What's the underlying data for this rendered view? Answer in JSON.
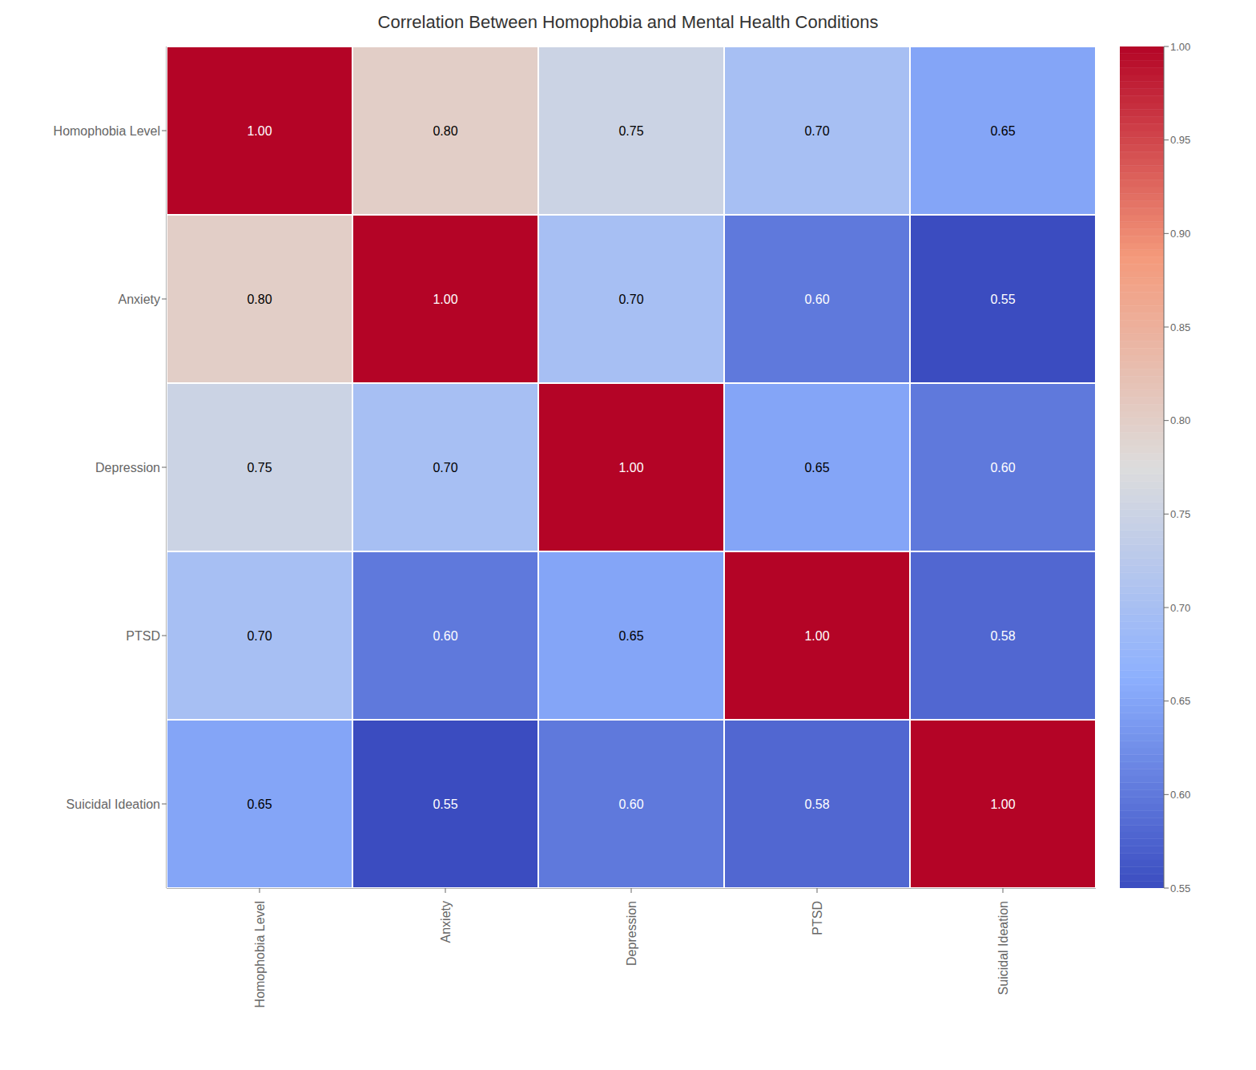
{
  "chart_data": {
    "type": "heatmap",
    "title": "Correlation Between Homophobia and Mental Health Conditions",
    "categories": [
      "Homophobia Level",
      "Anxiety",
      "Depression",
      "PTSD",
      "Suicidal Ideation"
    ],
    "values": [
      [
        1.0,
        0.8,
        0.75,
        0.7,
        0.65
      ],
      [
        0.8,
        1.0,
        0.7,
        0.6,
        0.55
      ],
      [
        0.75,
        0.7,
        1.0,
        0.65,
        0.6
      ],
      [
        0.7,
        0.6,
        0.65,
        1.0,
        0.58
      ],
      [
        0.65,
        0.55,
        0.6,
        0.58,
        1.0
      ]
    ],
    "value_labels": [
      [
        "1.00",
        "0.80",
        "0.75",
        "0.70",
        "0.65"
      ],
      [
        "0.80",
        "1.00",
        "0.70",
        "0.60",
        "0.55"
      ],
      [
        "0.75",
        "0.70",
        "1.00",
        "0.65",
        "0.60"
      ],
      [
        "0.70",
        "0.60",
        "0.65",
        "1.00",
        "0.58"
      ],
      [
        "0.65",
        "0.55",
        "0.60",
        "0.58",
        "1.00"
      ]
    ],
    "data_labels": true,
    "grid": false,
    "color_range": [
      0.55,
      1.0
    ],
    "color_ticks": [
      0.55,
      {
        "value": 0.6,
        "label": "0.60"
      },
      0.65,
      {
        "value": 0.7,
        "label": "0.70"
      },
      0.75,
      {
        "value": 0.8,
        "label": "0.80"
      },
      0.85,
      {
        "value": 0.9,
        "label": "0.90"
      },
      0.95,
      {
        "value": 1.0,
        "label": "1.00"
      }
    ]
  }
}
